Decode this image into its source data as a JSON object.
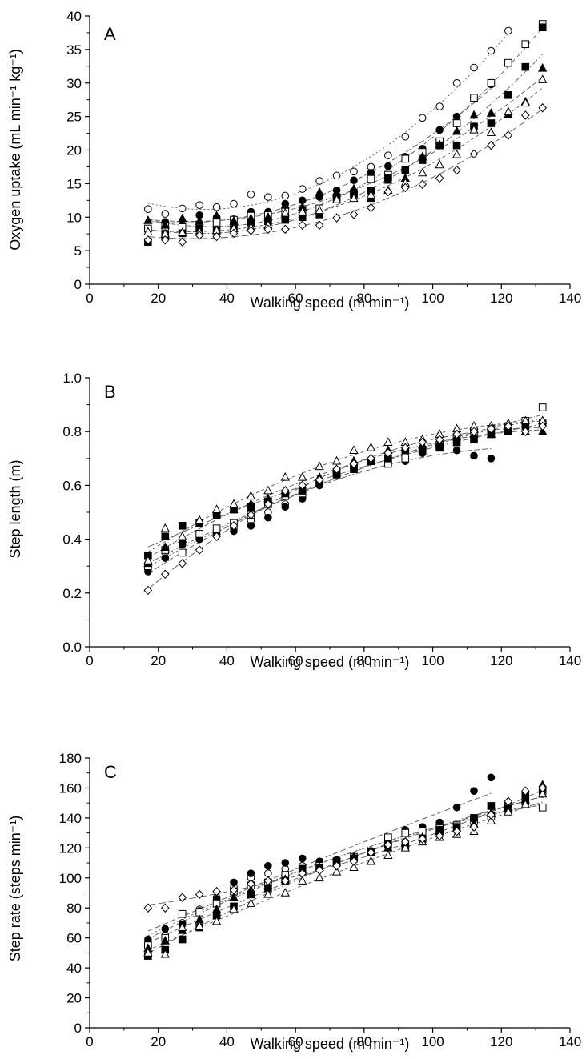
{
  "chart_data": [
    {
      "type": "scatter",
      "panel": "A",
      "xlabel": "Walking speed (m min⁻¹)",
      "ylabel": "Oxygen uptake (mL min⁻¹ kg⁻¹)",
      "xlim": [
        0,
        140
      ],
      "ylim": [
        0,
        40
      ],
      "xticks": [
        0,
        20,
        40,
        60,
        80,
        100,
        120,
        140
      ],
      "yticks": [
        0,
        5,
        10,
        15,
        20,
        25,
        30,
        35,
        40
      ],
      "x": [
        17,
        22,
        27,
        32,
        37,
        42,
        47,
        52,
        57,
        62,
        67,
        72,
        77,
        82,
        87,
        92,
        97,
        102,
        107,
        112,
        117,
        122,
        127,
        132
      ],
      "series": [
        {
          "marker": "open-circle",
          "values": [
            11.2,
            10.5,
            11.3,
            11.8,
            11.5,
            12.0,
            13.4,
            13.0,
            13.2,
            14.2,
            15.4,
            16.2,
            16.8,
            17.5,
            19.2,
            22.0,
            24.8,
            26.5,
            30.0,
            32.3,
            34.8,
            37.8,
            null,
            null
          ]
        },
        {
          "marker": "filled-circle",
          "values": [
            8.2,
            9.3,
            8.8,
            10.3,
            10.0,
            9.7,
            10.8,
            10.8,
            12.0,
            12.5,
            13.0,
            14.0,
            15.5,
            16.6,
            17.6,
            19.0,
            20.2,
            23.0,
            25.0,
            27.8,
            29.8,
            null,
            null,
            null
          ]
        },
        {
          "marker": "open-square",
          "values": [
            8.3,
            8.6,
            8.5,
            8.9,
            9.2,
            9.6,
            10.2,
            10.3,
            10.8,
            11.2,
            11.3,
            13.0,
            13.6,
            15.7,
            16.3,
            18.7,
            19.7,
            21.3,
            24.0,
            27.8,
            30.0,
            33.0,
            35.8,
            38.8
          ]
        },
        {
          "marker": "filled-square",
          "values": [
            6.3,
            7.3,
            7.6,
            8.3,
            8.0,
            8.5,
            9.2,
            9.4,
            9.6,
            10.0,
            10.4,
            12.9,
            13.4,
            14.0,
            15.9,
            17.0,
            18.5,
            20.7,
            20.7,
            23.5,
            24.0,
            28.2,
            32.4,
            38.3
          ]
        },
        {
          "marker": "filled-triangle",
          "values": [
            9.5,
            8.8,
            9.8,
            9.4,
            10.2,
            9.4,
            9.8,
            10.0,
            11.8,
            11.5,
            13.7,
            13.6,
            14.2,
            12.8,
            15.5,
            15.8,
            19.0,
            20.8,
            22.8,
            25.2,
            25.5,
            25.3,
            27.2,
            32.2
          ]
        },
        {
          "marker": "open-triangle",
          "values": [
            7.8,
            7.5,
            7.7,
            7.8,
            8.0,
            8.3,
            8.5,
            8.8,
            10.6,
            10.8,
            11.0,
            12.6,
            12.8,
            13.3,
            14.0,
            15.1,
            16.6,
            17.8,
            19.3,
            23.0,
            22.6,
            25.7,
            27.0,
            30.5
          ]
        },
        {
          "marker": "open-diamond",
          "values": [
            6.6,
            6.6,
            6.3,
            7.3,
            7.1,
            7.6,
            8.0,
            8.2,
            8.2,
            8.8,
            8.8,
            9.9,
            10.4,
            11.4,
            13.8,
            14.4,
            14.9,
            15.8,
            17.0,
            19.4,
            20.7,
            22.2,
            25.2,
            26.3
          ]
        }
      ]
    },
    {
      "type": "scatter",
      "panel": "B",
      "xlabel": "Walking speed (m min⁻¹)",
      "ylabel": "Step length (m)",
      "xlim": [
        0,
        140
      ],
      "ylim": [
        0,
        1.0
      ],
      "xticks": [
        0,
        20,
        40,
        60,
        80,
        100,
        120,
        140
      ],
      "yticks": [
        0.0,
        0.2,
        0.4,
        0.6,
        0.8,
        1.0
      ],
      "x": [
        17,
        22,
        27,
        32,
        37,
        42,
        47,
        52,
        57,
        62,
        67,
        72,
        77,
        82,
        87,
        92,
        97,
        102,
        107,
        112,
        117,
        122,
        127,
        132
      ],
      "series": [
        {
          "marker": "open-circle",
          "values": [
            0.31,
            0.35,
            0.38,
            0.4,
            0.42,
            0.44,
            0.47,
            0.5,
            0.53,
            0.57,
            0.6,
            0.64,
            0.67,
            0.69,
            0.71,
            0.72,
            0.74,
            0.76,
            0.78,
            0.8,
            0.81,
            0.82,
            0.83,
            0.83
          ]
        },
        {
          "marker": "filled-circle",
          "values": [
            0.28,
            0.33,
            0.38,
            0.4,
            0.42,
            0.43,
            0.45,
            0.48,
            0.52,
            0.55,
            0.6,
            0.65,
            0.68,
            0.69,
            0.69,
            0.69,
            0.72,
            0.74,
            0.73,
            0.71,
            0.7,
            null,
            null,
            null
          ]
        },
        {
          "marker": "open-square",
          "values": [
            0.3,
            0.36,
            0.35,
            0.42,
            0.44,
            0.46,
            0.49,
            0.53,
            0.56,
            0.57,
            0.61,
            0.65,
            0.67,
            0.69,
            0.68,
            0.7,
            0.73,
            0.75,
            0.78,
            0.8,
            0.81,
            0.82,
            0.84,
            0.89
          ]
        },
        {
          "marker": "filled-square",
          "values": [
            0.34,
            0.41,
            0.45,
            0.46,
            0.49,
            0.51,
            0.52,
            0.54,
            0.57,
            0.58,
            0.61,
            0.64,
            0.66,
            0.69,
            0.7,
            0.73,
            0.73,
            0.74,
            0.76,
            0.77,
            0.79,
            0.8,
            0.82,
            0.83
          ]
        },
        {
          "marker": "filled-triangle",
          "values": [
            0.31,
            0.37,
            0.4,
            0.47,
            0.5,
            0.51,
            0.53,
            0.55,
            0.58,
            0.59,
            0.63,
            0.65,
            0.69,
            0.7,
            0.73,
            0.74,
            0.75,
            0.76,
            0.78,
            0.79,
            0.79,
            0.8,
            0.8,
            0.8
          ]
        },
        {
          "marker": "open-triangle",
          "values": [
            0.32,
            0.44,
            0.41,
            0.47,
            0.51,
            0.53,
            0.56,
            0.58,
            0.63,
            0.63,
            0.67,
            0.69,
            0.73,
            0.74,
            0.76,
            0.76,
            0.77,
            0.79,
            0.81,
            0.82,
            0.82,
            0.83,
            0.84,
            0.84
          ]
        },
        {
          "marker": "open-diamond",
          "values": [
            0.21,
            0.27,
            0.31,
            0.36,
            0.41,
            0.45,
            0.49,
            0.53,
            0.58,
            0.6,
            0.62,
            0.66,
            0.68,
            0.7,
            0.72,
            0.74,
            0.76,
            0.77,
            0.79,
            0.8,
            0.81,
            0.82,
            0.8,
            0.82
          ]
        }
      ]
    },
    {
      "type": "scatter",
      "panel": "C",
      "xlabel": "Walking speed (m min⁻¹)",
      "ylabel": "Step rate (steps min⁻¹)",
      "xlim": [
        0,
        140
      ],
      "ylim": [
        0,
        180
      ],
      "xticks": [
        0,
        20,
        40,
        60,
        80,
        100,
        120,
        140
      ],
      "yticks": [
        0,
        20,
        40,
        60,
        80,
        100,
        120,
        140,
        160,
        180
      ],
      "x": [
        17,
        22,
        27,
        32,
        37,
        42,
        47,
        52,
        57,
        62,
        67,
        72,
        77,
        82,
        87,
        92,
        97,
        102,
        107,
        112,
        117,
        122,
        127,
        132
      ],
      "series": [
        {
          "marker": "open-circle",
          "values": [
            54,
            62,
            70,
            79,
            87,
            94,
            100,
            103,
            106,
            108,
            110,
            112,
            114,
            117,
            121,
            124,
            128,
            131,
            135,
            139,
            142,
            146,
            150,
            156
          ]
        },
        {
          "marker": "filled-circle",
          "values": [
            59,
            66,
            69,
            78,
            86,
            97,
            103,
            108,
            110,
            113,
            111,
            112,
            113,
            118,
            126,
            132,
            134,
            137,
            147,
            158,
            167,
            null,
            null,
            null
          ]
        },
        {
          "marker": "open-square",
          "values": [
            55,
            60,
            76,
            77,
            83,
            91,
            95,
            97,
            102,
            106,
            108,
            111,
            114,
            117,
            127,
            130,
            131,
            133,
            135,
            138,
            141,
            148,
            151,
            147
          ]
        },
        {
          "marker": "filled-square",
          "values": [
            48,
            52,
            59,
            67,
            75,
            81,
            89,
            93,
            98,
            106,
            107,
            111,
            113,
            117,
            122,
            121,
            126,
            132,
            134,
            140,
            148,
            146,
            155,
            159
          ]
        },
        {
          "marker": "filled-triangle",
          "values": [
            53,
            58,
            65,
            72,
            79,
            87,
            92,
            95,
            99,
            104,
            107,
            110,
            114,
            118,
            120,
            123,
            127,
            131,
            133,
            136,
            143,
            151,
            152,
            162
          ]
        },
        {
          "marker": "open-triangle",
          "values": [
            50,
            49,
            67,
            68,
            71,
            79,
            83,
            89,
            90,
            98,
            100,
            104,
            107,
            111,
            115,
            120,
            124,
            127,
            129,
            131,
            138,
            144,
            149,
            156
          ]
        },
        {
          "marker": "open-diamond",
          "values": [
            80,
            80,
            87,
            89,
            91,
            92,
            96,
            98,
            98,
            103,
            105,
            108,
            111,
            117,
            122,
            124,
            126,
            128,
            131,
            134,
            142,
            151,
            158,
            160
          ]
        }
      ]
    }
  ]
}
